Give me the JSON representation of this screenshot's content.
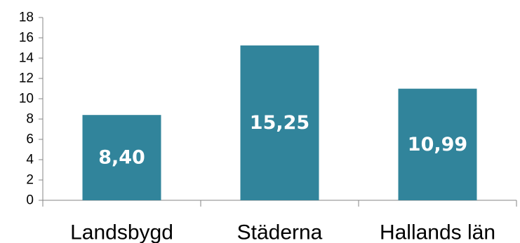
{
  "chart_data": {
    "type": "bar",
    "title": "",
    "xlabel": "",
    "ylabel": "",
    "categories": [
      "Landsbygd",
      "Städerna",
      "Hallands län"
    ],
    "values": [
      8.4,
      15.25,
      10.99
    ],
    "data_labels": [
      "8,40",
      "15,25",
      "10,99"
    ],
    "ylim": [
      0,
      18
    ],
    "yticks": [
      0,
      2,
      4,
      6,
      8,
      10,
      12,
      14,
      16,
      18
    ],
    "ytick_labels": [
      "0",
      "2",
      "4",
      "6",
      "8",
      "10",
      "12",
      "14",
      "16",
      "18"
    ],
    "grid": false,
    "legend": "none",
    "bar_color": "#31849B",
    "axis_color": "#868686"
  }
}
